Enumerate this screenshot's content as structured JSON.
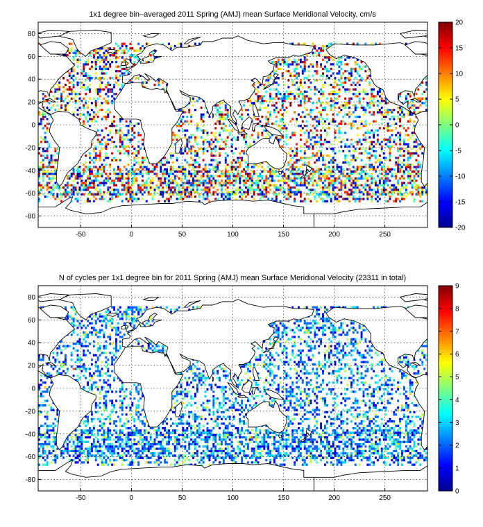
{
  "chart_data": [
    {
      "type": "heatmap",
      "title": "1x1 degree bin–averaged 2011 Spring (AMJ) mean Surface Meridional Velocity, cm/s",
      "xlim": [
        -92,
        292
      ],
      "ylim": [
        -90,
        90
      ],
      "xticks": [
        -50,
        0,
        50,
        100,
        150,
        200,
        250
      ],
      "yticks": [
        80,
        60,
        40,
        20,
        0,
        -20,
        -40,
        -60,
        -80
      ],
      "colorbar": {
        "range": [
          -20,
          20
        ],
        "ticks": [
          20,
          15,
          10,
          5,
          0,
          -5,
          -10,
          -15,
          -20
        ],
        "colormap": "jet"
      },
      "grid": true
    },
    {
      "type": "heatmap",
      "title": "N of cycles per 1x1 degree bin for 2011 Spring (AMJ) mean Surface Meridional Velocity (23311 in total)",
      "xlim": [
        -92,
        292
      ],
      "ylim": [
        -90,
        90
      ],
      "xticks": [
        -50,
        0,
        50,
        100,
        150,
        200,
        250
      ],
      "yticks": [
        80,
        60,
        40,
        20,
        0,
        -20,
        -40,
        -60,
        -80
      ],
      "colorbar": {
        "range": [
          0,
          9
        ],
        "ticks": [
          9,
          8,
          7,
          6,
          5,
          4,
          3,
          2,
          1,
          0
        ],
        "colormap": "jet"
      },
      "grid": true
    }
  ]
}
